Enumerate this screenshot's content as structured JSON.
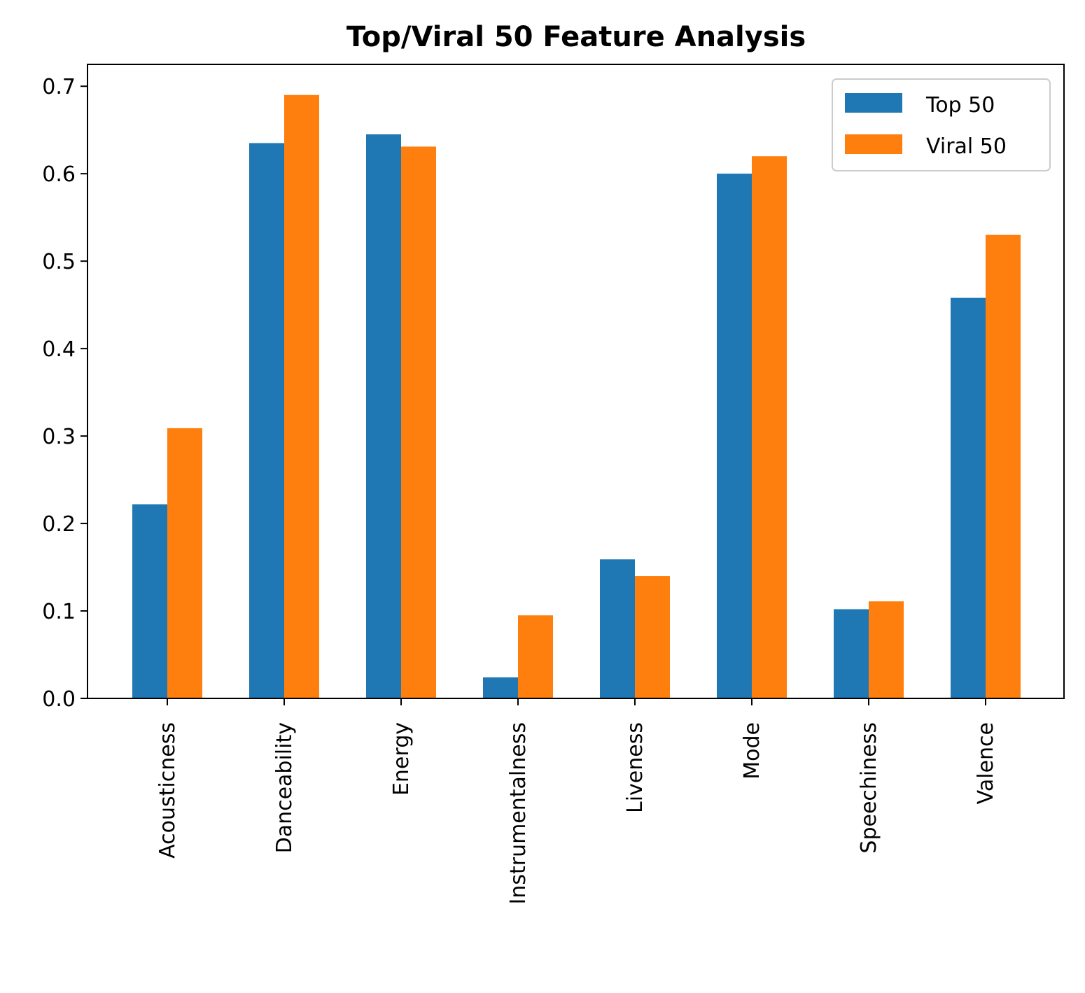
{
  "chart_data": {
    "type": "bar",
    "title": "Top/Viral 50 Feature Analysis",
    "xlabel": "",
    "ylabel": "",
    "categories": [
      "Acousticness",
      "Danceability",
      "Energy",
      "Instrumentalness",
      "Liveness",
      "Mode",
      "Speechiness",
      "Valence"
    ],
    "series": [
      {
        "name": "Top 50",
        "color": "#1f77b4",
        "values": [
          0.222,
          0.635,
          0.645,
          0.024,
          0.159,
          0.6,
          0.102,
          0.458
        ]
      },
      {
        "name": "Viral 50",
        "color": "#ff7f0e",
        "values": [
          0.309,
          0.69,
          0.631,
          0.095,
          0.14,
          0.62,
          0.111,
          0.53
        ]
      }
    ],
    "ylim": [
      0,
      0.725
    ],
    "yticks": [
      "0.0",
      "0.1",
      "0.2",
      "0.3",
      "0.4",
      "0.5",
      "0.6",
      "0.7"
    ],
    "grid": false,
    "legend": "top-right"
  }
}
